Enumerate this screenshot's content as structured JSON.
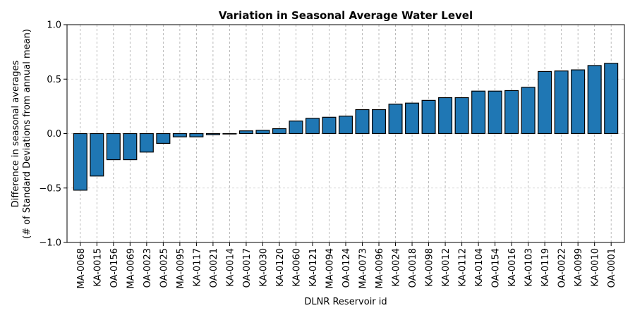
{
  "chart_data": {
    "type": "bar",
    "title": "Variation in Seasonal Average Water Level",
    "xlabel": "DLNR Reservoir id",
    "ylabel_lines": [
      "Difference in seasonal averages",
      "(# of Standard Deviations from annual mean)"
    ],
    "ylim": [
      -1.0,
      1.0
    ],
    "yticks": [
      -1.0,
      -0.5,
      0.0,
      0.5,
      1.0
    ],
    "ytick_labels": [
      "−1.0",
      "−0.5",
      "0.0",
      "0.5",
      "1.0"
    ],
    "grid": true,
    "bar_color": "#1f77b4",
    "edge_color": "#000000",
    "categories": [
      "MA-0068",
      "KA-0015",
      "OA-0156",
      "MA-0069",
      "OA-0023",
      "OA-0025",
      "MA-0095",
      "KA-0117",
      "OA-0021",
      "KA-0014",
      "OA-0017",
      "KA-0030",
      "KA-0120",
      "KA-0060",
      "KA-0121",
      "MA-0094",
      "OA-0124",
      "MA-0073",
      "MA-0096",
      "KA-0024",
      "OA-0018",
      "KA-0098",
      "KA-0012",
      "KA-0112",
      "KA-0104",
      "OA-0154",
      "KA-0016",
      "KA-0103",
      "KA-0119",
      "OA-0022",
      "KA-0099",
      "KA-0010",
      "OA-0001"
    ],
    "values": [
      -0.52,
      -0.39,
      -0.24,
      -0.24,
      -0.17,
      -0.09,
      -0.03,
      -0.03,
      -0.01,
      0.0,
      0.025,
      0.03,
      0.045,
      0.115,
      0.14,
      0.15,
      0.16,
      0.22,
      0.22,
      0.27,
      0.28,
      0.305,
      0.33,
      0.33,
      0.39,
      0.39,
      0.395,
      0.425,
      0.57,
      0.575,
      0.585,
      0.625,
      0.645
    ]
  }
}
